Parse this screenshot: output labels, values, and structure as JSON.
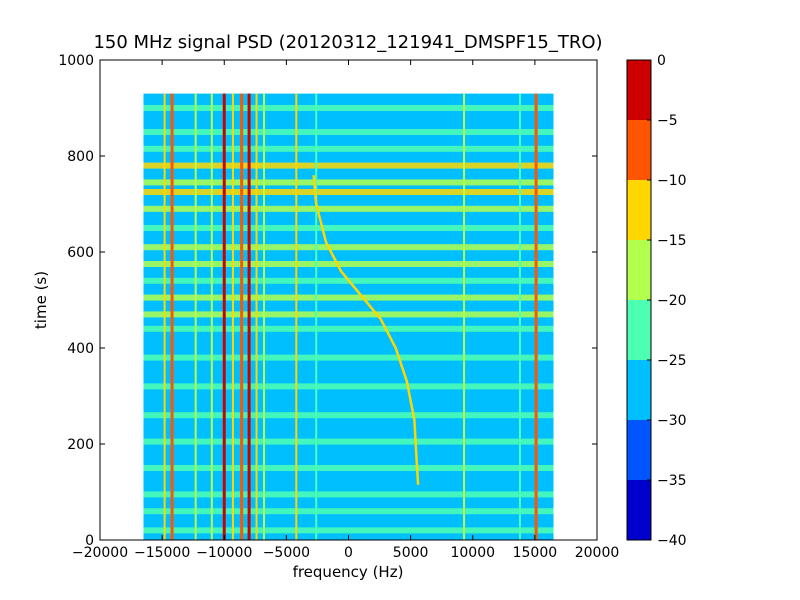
{
  "chart_data": {
    "type": "heatmap",
    "title": "150 MHz signal PSD (20120312_121941_DMSPF15_TRO)",
    "xlabel": "frequency (Hz)",
    "ylabel": "time (s)",
    "xlim": [
      -20000,
      20000
    ],
    "ylim": [
      0,
      1000
    ],
    "xticks": [
      "−20000",
      "−15000",
      "−10000",
      "−5000",
      "0",
      "5000",
      "10000",
      "15000",
      "20000"
    ],
    "yticks": [
      "0",
      "200",
      "400",
      "600",
      "800",
      "1000"
    ],
    "data_extent": {
      "x": [
        -16500,
        16500
      ],
      "y": [
        0,
        930
      ]
    },
    "colorbar": {
      "ticks": [
        "0",
        "−5",
        "−10",
        "−15",
        "−20",
        "−25",
        "−30",
        "−35",
        "−40"
      ],
      "levels": [
        -40,
        -35,
        -30,
        -25,
        -20,
        -15,
        -10,
        -5,
        0
      ],
      "colors": [
        "#0000cd",
        "#0055ff",
        "#00bfff",
        "#4dffb2",
        "#b2ff4d",
        "#ffd700",
        "#ff5500",
        "#cd0000"
      ]
    },
    "background_level": "#00bfff",
    "vertical_lines": [
      {
        "x": -14800,
        "color": "#ffd700"
      },
      {
        "x": -14200,
        "color": "#ff5500"
      },
      {
        "x": -12300,
        "color": "#b2ff4d"
      },
      {
        "x": -11000,
        "color": "#b2ff4d"
      },
      {
        "x": -10000,
        "color": "#cd0000"
      },
      {
        "x": -9300,
        "color": "#ffd700"
      },
      {
        "x": -8600,
        "color": "#ff5500"
      },
      {
        "x": -8000,
        "color": "#cd0000"
      },
      {
        "x": -7400,
        "color": "#ffd700"
      },
      {
        "x": -6800,
        "color": "#b2ff4d"
      },
      {
        "x": -4200,
        "color": "#ffd700"
      },
      {
        "x": -2600,
        "color": "#4dffb2"
      },
      {
        "x": 9300,
        "color": "#b2ff4d"
      },
      {
        "x": 13800,
        "color": "#4dffb2"
      },
      {
        "x": 15100,
        "color": "#ff5500"
      }
    ],
    "horizontal_bands": [
      {
        "y": 20,
        "color": "#4dffb2"
      },
      {
        "y": 60,
        "color": "#4dffb2"
      },
      {
        "y": 95,
        "color": "#4dffb2"
      },
      {
        "y": 150,
        "color": "#4dffb2"
      },
      {
        "y": 205,
        "color": "#4dffb2"
      },
      {
        "y": 260,
        "color": "#4dffb2"
      },
      {
        "y": 320,
        "color": "#4dffb2"
      },
      {
        "y": 380,
        "color": "#4dffb2"
      },
      {
        "y": 440,
        "color": "#4dffb2"
      },
      {
        "y": 470,
        "color": "#b2ff4d"
      },
      {
        "y": 505,
        "color": "#b2ff4d"
      },
      {
        "y": 540,
        "color": "#4dffb2"
      },
      {
        "y": 575,
        "color": "#b2ff4d"
      },
      {
        "y": 610,
        "color": "#b2ff4d"
      },
      {
        "y": 650,
        "color": "#4dffb2"
      },
      {
        "y": 690,
        "color": "#b2ff4d"
      },
      {
        "y": 725,
        "color": "#ffd700"
      },
      {
        "y": 745,
        "color": "#b2ff4d"
      },
      {
        "y": 780,
        "color": "#ffd700"
      },
      {
        "y": 815,
        "color": "#4dffb2"
      },
      {
        "y": 850,
        "color": "#4dffb2"
      },
      {
        "y": 900,
        "color": "#4dffb2"
      }
    ],
    "doppler_trace": [
      {
        "x": -2800,
        "y": 760
      },
      {
        "x": -2600,
        "y": 700
      },
      {
        "x": -1800,
        "y": 620
      },
      {
        "x": -600,
        "y": 560
      },
      {
        "x": 1000,
        "y": 510
      },
      {
        "x": 2600,
        "y": 460
      },
      {
        "x": 3800,
        "y": 400
      },
      {
        "x": 4700,
        "y": 330
      },
      {
        "x": 5300,
        "y": 250
      },
      {
        "x": 5500,
        "y": 160
      },
      {
        "x": 5600,
        "y": 115
      }
    ]
  }
}
